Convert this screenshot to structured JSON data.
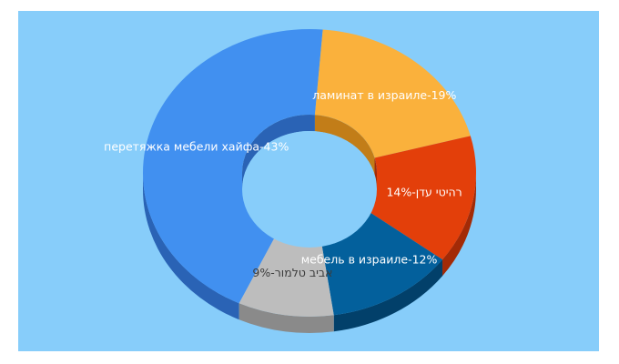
{
  "chart_data": {
    "type": "pie",
    "donut": true,
    "three_d": true,
    "title": "",
    "background": "#87cdfa",
    "slices": [
      {
        "label": "перетяжка мебели хайфа-43%",
        "value": 43,
        "color": "#4190f0",
        "side_color": "#2a63b5",
        "label_dark": false
      },
      {
        "label": "ламинат в израиле-19%",
        "value": 19,
        "color": "#fab13c",
        "side_color": "#c27d18",
        "label_dark": false
      },
      {
        "label": "רהיטי עדן-14%",
        "value": 14,
        "color": "#e33f0a",
        "side_color": "#a32a06",
        "label_dark": false
      },
      {
        "label": "мебель в израиле-12%",
        "value": 12,
        "color": "#03609c",
        "side_color": "#02406a",
        "label_dark": false
      },
      {
        "label": "אביב טלמור-9%",
        "value": 9,
        "color": "#bdbdbd",
        "side_color": "#8a8a8a",
        "label_dark": true
      }
    ]
  }
}
